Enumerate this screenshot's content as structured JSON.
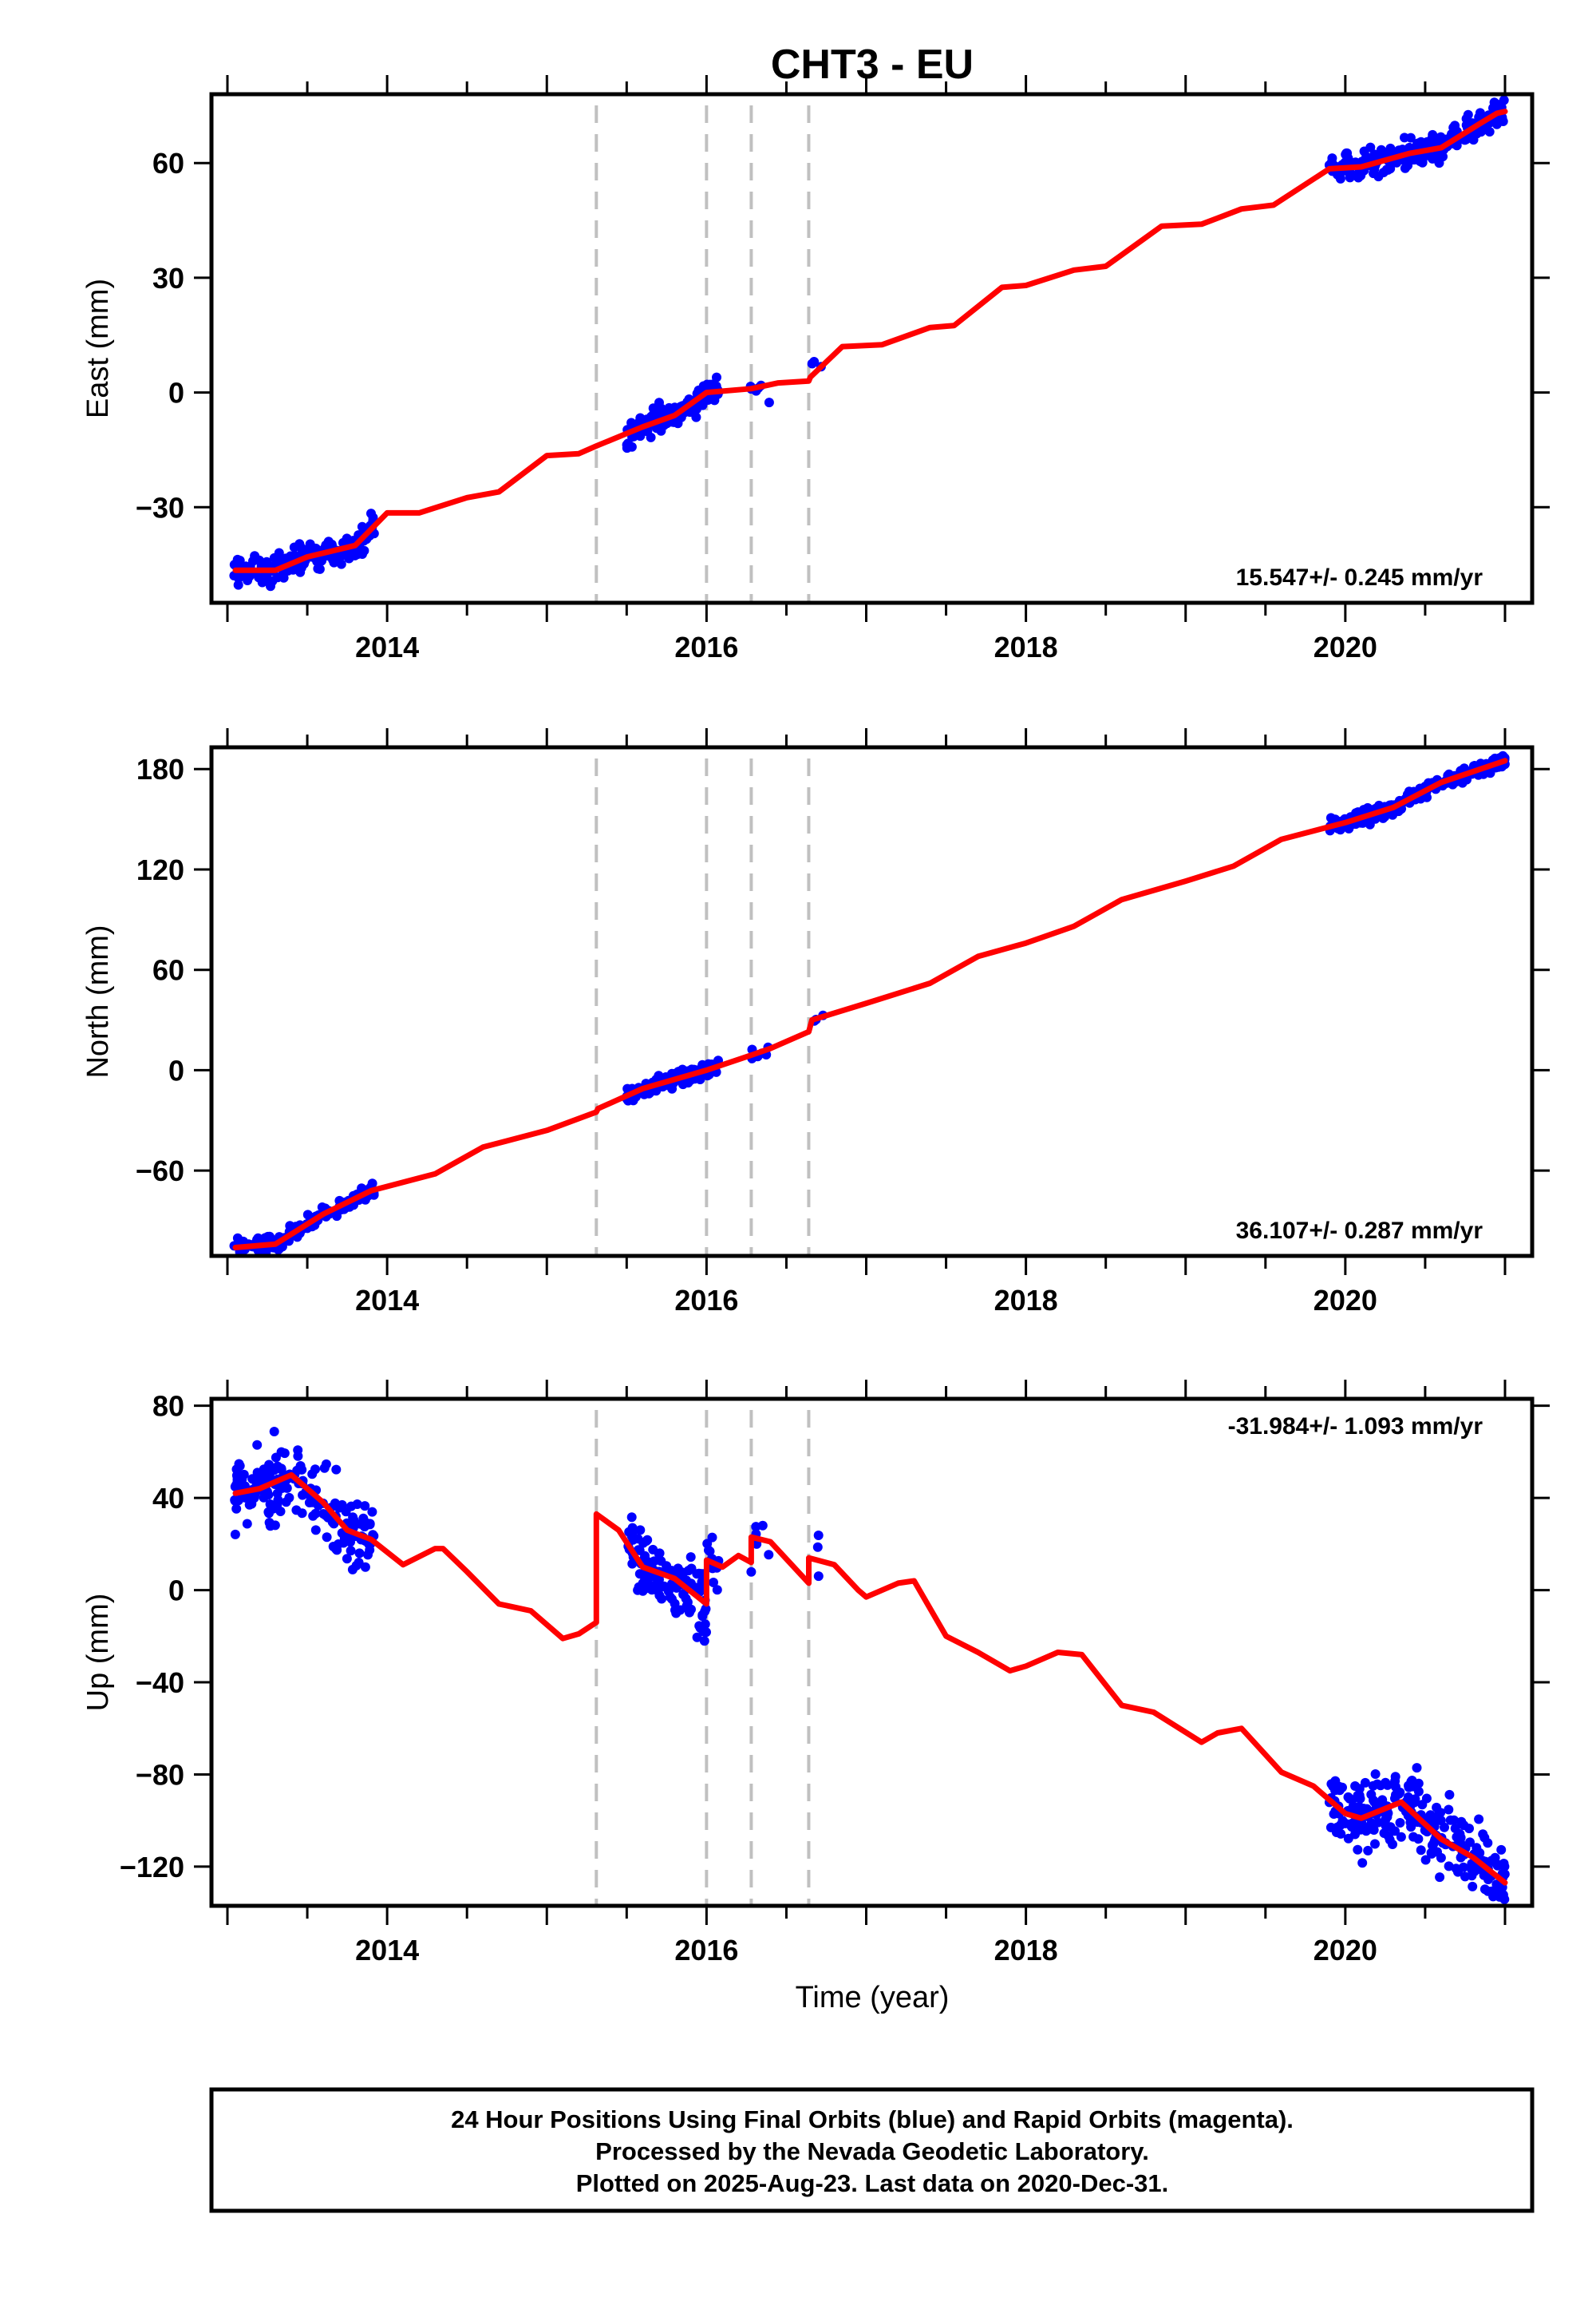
{
  "chart_data": {
    "type": "scatter",
    "title": "CHT3 - EU",
    "xlabel": "Time (year)",
    "xlim": [
      2012.9,
      2021.17
    ],
    "xticks": [
      2014,
      2016,
      2018,
      2020
    ],
    "grid": false,
    "offset_epochs": [
      2015.31,
      2016.0,
      2016.28,
      2016.64
    ],
    "data_segments": [
      [
        2013.04,
        2013.92
      ],
      [
        2015.5,
        2016.08
      ],
      [
        2016.26,
        2016.4
      ],
      [
        2016.66,
        2016.74
      ],
      [
        2019.9,
        2021.0
      ]
    ],
    "panels": [
      {
        "key": "east",
        "ylabel": "East (mm)",
        "ylim": [
          -55,
          78
        ],
        "yticks": [
          -30,
          0,
          30,
          60
        ],
        "rate_text": "15.547+/- 0.245 mm/yr",
        "rate_position": "bottom-right",
        "model_line": [
          [
            2013.05,
            -46.5
          ],
          [
            2013.3,
            -46.5
          ],
          [
            2013.5,
            -43
          ],
          [
            2013.8,
            -40
          ],
          [
            2014.0,
            -31.5
          ],
          [
            2014.2,
            -31.5
          ],
          [
            2014.5,
            -27.5
          ],
          [
            2014.7,
            -26
          ],
          [
            2015.0,
            -16.5
          ],
          [
            2015.2,
            -16
          ],
          [
            2015.31,
            -14
          ],
          [
            2015.6,
            -9
          ],
          [
            2015.8,
            -6
          ],
          [
            2016.0,
            0
          ],
          [
            2016.28,
            1
          ],
          [
            2016.45,
            2.5
          ],
          [
            2016.64,
            3
          ],
          [
            2016.65,
            4
          ],
          [
            2016.85,
            12
          ],
          [
            2017.1,
            12.5
          ],
          [
            2017.4,
            17
          ],
          [
            2017.55,
            17.5
          ],
          [
            2017.85,
            27.5
          ],
          [
            2018.0,
            28
          ],
          [
            2018.3,
            32
          ],
          [
            2018.5,
            33
          ],
          [
            2018.85,
            43.5
          ],
          [
            2019.1,
            44
          ],
          [
            2019.35,
            48
          ],
          [
            2019.55,
            49
          ],
          [
            2019.9,
            58.5
          ],
          [
            2020.1,
            59
          ],
          [
            2020.4,
            62.5
          ],
          [
            2020.6,
            64
          ],
          [
            2020.85,
            70.5
          ],
          [
            2020.95,
            73
          ],
          [
            2021.0,
            73.5
          ]
        ]
      },
      {
        "key": "north",
        "ylabel": "North (mm)",
        "ylim": [
          -111,
          193
        ],
        "yticks": [
          -60,
          0,
          60,
          120,
          180
        ],
        "rate_text": "36.107+/- 0.287 mm/yr",
        "rate_position": "bottom-right",
        "model_line": [
          [
            2013.05,
            -106
          ],
          [
            2013.3,
            -104
          ],
          [
            2013.6,
            -86
          ],
          [
            2013.9,
            -72
          ],
          [
            2014.3,
            -62
          ],
          [
            2014.6,
            -46
          ],
          [
            2015.0,
            -36
          ],
          [
            2015.31,
            -25
          ],
          [
            2015.32,
            -23
          ],
          [
            2015.6,
            -11
          ],
          [
            2016.0,
            0
          ],
          [
            2016.28,
            9
          ],
          [
            2016.4,
            13
          ],
          [
            2016.64,
            23
          ],
          [
            2016.66,
            30
          ],
          [
            2017.0,
            40
          ],
          [
            2017.4,
            52
          ],
          [
            2017.7,
            68
          ],
          [
            2018.0,
            76
          ],
          [
            2018.3,
            86
          ],
          [
            2018.6,
            102
          ],
          [
            2019.0,
            113
          ],
          [
            2019.3,
            122
          ],
          [
            2019.6,
            138
          ],
          [
            2020.0,
            148
          ],
          [
            2020.3,
            157
          ],
          [
            2020.6,
            172
          ],
          [
            2021.0,
            185
          ]
        ]
      },
      {
        "key": "up",
        "ylabel": "Up (mm)",
        "ylim": [
          -137,
          83
        ],
        "yticks": [
          -120,
          -80,
          -40,
          0,
          40,
          80
        ],
        "rate_text": "-31.984+/- 1.093 mm/yr",
        "rate_position": "top-right",
        "model_line": [
          [
            2013.05,
            42
          ],
          [
            2013.2,
            44
          ],
          [
            2013.4,
            50
          ],
          [
            2013.6,
            38
          ],
          [
            2013.75,
            26
          ],
          [
            2013.9,
            22
          ],
          [
            2014.1,
            11
          ],
          [
            2014.3,
            18
          ],
          [
            2014.35,
            18
          ],
          [
            2014.5,
            8
          ],
          [
            2014.7,
            -6
          ],
          [
            2014.9,
            -9
          ],
          [
            2015.1,
            -21
          ],
          [
            2015.2,
            -19
          ],
          [
            2015.31,
            -14
          ],
          [
            2015.31,
            33
          ],
          [
            2015.45,
            26
          ],
          [
            2015.6,
            10
          ],
          [
            2015.8,
            5
          ],
          [
            2016.0,
            -6
          ],
          [
            2016.0,
            13
          ],
          [
            2016.1,
            10
          ],
          [
            2016.2,
            15
          ],
          [
            2016.28,
            12
          ],
          [
            2016.28,
            23
          ],
          [
            2016.4,
            21
          ],
          [
            2016.64,
            3
          ],
          [
            2016.64,
            14
          ],
          [
            2016.8,
            11
          ],
          [
            2016.95,
            0
          ],
          [
            2017.0,
            -3
          ],
          [
            2017.2,
            3
          ],
          [
            2017.3,
            4
          ],
          [
            2017.5,
            -20
          ],
          [
            2017.7,
            -27
          ],
          [
            2017.9,
            -35
          ],
          [
            2018.0,
            -33
          ],
          [
            2018.2,
            -27
          ],
          [
            2018.35,
            -28
          ],
          [
            2018.6,
            -50
          ],
          [
            2018.8,
            -53
          ],
          [
            2019.1,
            -66
          ],
          [
            2019.2,
            -62
          ],
          [
            2019.35,
            -60
          ],
          [
            2019.6,
            -79
          ],
          [
            2019.8,
            -85
          ],
          [
            2020.0,
            -97
          ],
          [
            2020.1,
            -99
          ],
          [
            2020.35,
            -92
          ],
          [
            2020.6,
            -108
          ],
          [
            2020.8,
            -116
          ],
          [
            2021.0,
            -127
          ]
        ]
      }
    ],
    "dot_color": "#0000ff",
    "line_color": "#ff0000",
    "offset_color": "#c0c0c0"
  },
  "footer": {
    "line1": "24 Hour Positions Using Final Orbits (blue) and Rapid Orbits (magenta).",
    "line2": "Processed by the Nevada Geodetic Laboratory.",
    "line3": "Plotted on 2025-Aug-23. Last data on 2020-Dec-31."
  }
}
